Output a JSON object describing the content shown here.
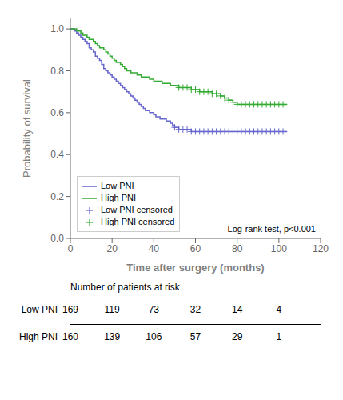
{
  "chart_data": {
    "type": "line",
    "title": "",
    "xlabel": "Time after surgery (months)",
    "ylabel": "Probability of survival",
    "xlim": [
      0,
      120
    ],
    "ylim": [
      0.0,
      1.05
    ],
    "xticks": [
      0,
      20,
      40,
      60,
      80,
      100,
      120
    ],
    "yticks": [
      {
        "value": 0.0,
        "label": "0.0"
      },
      0.2,
      0.4,
      0.6,
      0.8,
      {
        "value": 1.0,
        "label": "1.0"
      }
    ],
    "grid": false,
    "legend": "lower left",
    "annotation": "Log-rank test, p<0.001",
    "series": [
      {
        "name": "Low PNI",
        "type": "step",
        "color": "#6666cc",
        "x": [
          0,
          2,
          3,
          4,
          5,
          6,
          7,
          8,
          9,
          10,
          11,
          12,
          13,
          14,
          15,
          16,
          17,
          18,
          19,
          20,
          21,
          22,
          23,
          24,
          25,
          26,
          27,
          28,
          29,
          30,
          31,
          32,
          33,
          34,
          35,
          36,
          37,
          38,
          39,
          40,
          41,
          42,
          43,
          44,
          45,
          46,
          47,
          48,
          49,
          50,
          52,
          54,
          56,
          58,
          60,
          62,
          64,
          66,
          68,
          70,
          72,
          74,
          76,
          78,
          80,
          82,
          84,
          86,
          88,
          90,
          92,
          94,
          96,
          98,
          100,
          102,
          104
        ],
        "values": [
          1.0,
          0.99,
          0.98,
          0.97,
          0.96,
          0.95,
          0.94,
          0.93,
          0.91,
          0.9,
          0.89,
          0.87,
          0.86,
          0.85,
          0.83,
          0.81,
          0.8,
          0.79,
          0.78,
          0.77,
          0.76,
          0.75,
          0.74,
          0.73,
          0.72,
          0.71,
          0.7,
          0.69,
          0.68,
          0.67,
          0.66,
          0.65,
          0.64,
          0.63,
          0.62,
          0.61,
          0.61,
          0.6,
          0.6,
          0.59,
          0.58,
          0.58,
          0.57,
          0.57,
          0.57,
          0.56,
          0.56,
          0.55,
          0.54,
          0.53,
          0.52,
          0.52,
          0.52,
          0.51,
          0.51,
          0.51,
          0.51,
          0.51,
          0.51,
          0.51,
          0.51,
          0.51,
          0.51,
          0.51,
          0.51,
          0.51,
          0.51,
          0.51,
          0.51,
          0.51,
          0.51,
          0.51,
          0.51,
          0.51,
          0.51,
          0.51,
          0.51
        ]
      },
      {
        "name": "High PNI",
        "type": "step",
        "color": "#33aa33",
        "x": [
          0,
          2,
          3,
          4,
          5,
          6,
          7,
          8,
          9,
          10,
          11,
          12,
          13,
          14,
          15,
          16,
          17,
          18,
          19,
          20,
          21,
          22,
          23,
          24,
          25,
          26,
          27,
          28,
          29,
          30,
          32,
          34,
          36,
          38,
          40,
          42,
          44,
          46,
          48,
          50,
          52,
          54,
          56,
          58,
          60,
          62,
          64,
          66,
          68,
          70,
          72,
          74,
          76,
          78,
          80,
          82,
          84,
          86,
          88,
          90,
          92,
          94,
          96,
          98,
          100,
          102,
          104
        ],
        "values": [
          1.0,
          1.0,
          0.99,
          0.99,
          0.98,
          0.97,
          0.97,
          0.96,
          0.95,
          0.95,
          0.94,
          0.93,
          0.92,
          0.91,
          0.91,
          0.9,
          0.89,
          0.88,
          0.87,
          0.86,
          0.85,
          0.84,
          0.84,
          0.83,
          0.82,
          0.81,
          0.8,
          0.8,
          0.79,
          0.79,
          0.78,
          0.77,
          0.77,
          0.76,
          0.75,
          0.75,
          0.74,
          0.74,
          0.73,
          0.73,
          0.72,
          0.72,
          0.72,
          0.71,
          0.71,
          0.7,
          0.7,
          0.7,
          0.69,
          0.69,
          0.68,
          0.67,
          0.66,
          0.65,
          0.64,
          0.64,
          0.64,
          0.64,
          0.64,
          0.64,
          0.64,
          0.64,
          0.64,
          0.64,
          0.64,
          0.64,
          0.64
        ]
      },
      {
        "name": "Low PNI censored",
        "type": "scatter",
        "marker": "+",
        "color": "#6666cc",
        "x": [
          50,
          52,
          54,
          56,
          58,
          60,
          62,
          64,
          66,
          68,
          70,
          72,
          74,
          76,
          78,
          80,
          82,
          84,
          86,
          88,
          90,
          92,
          94,
          96,
          98,
          100,
          102
        ],
        "values": [
          0.53,
          0.52,
          0.52,
          0.52,
          0.51,
          0.51,
          0.51,
          0.51,
          0.51,
          0.51,
          0.51,
          0.51,
          0.51,
          0.51,
          0.51,
          0.51,
          0.51,
          0.51,
          0.51,
          0.51,
          0.51,
          0.51,
          0.51,
          0.51,
          0.51,
          0.51,
          0.51
        ]
      },
      {
        "name": "High PNI censored",
        "type": "scatter",
        "marker": "+",
        "color": "#33aa33",
        "x": [
          52,
          54,
          56,
          58,
          60,
          62,
          64,
          66,
          68,
          70,
          72,
          74,
          76,
          78,
          80,
          82,
          84,
          86,
          88,
          90,
          92,
          94,
          96,
          98,
          100,
          102
        ],
        "values": [
          0.72,
          0.72,
          0.72,
          0.71,
          0.71,
          0.7,
          0.7,
          0.7,
          0.69,
          0.69,
          0.68,
          0.67,
          0.66,
          0.65,
          0.64,
          0.64,
          0.64,
          0.64,
          0.64,
          0.64,
          0.64,
          0.64,
          0.64,
          0.64,
          0.64,
          0.64
        ]
      }
    ],
    "risk_table": {
      "header": "Number of patients at risk",
      "times": [
        0,
        20,
        40,
        60,
        80,
        100
      ],
      "rows": [
        {
          "name": "Low PNI",
          "values": [
            169,
            119,
            73,
            32,
            14,
            4
          ]
        },
        {
          "name": "High PNI",
          "values": [
            160,
            139,
            106,
            57,
            29,
            1
          ]
        }
      ]
    }
  }
}
